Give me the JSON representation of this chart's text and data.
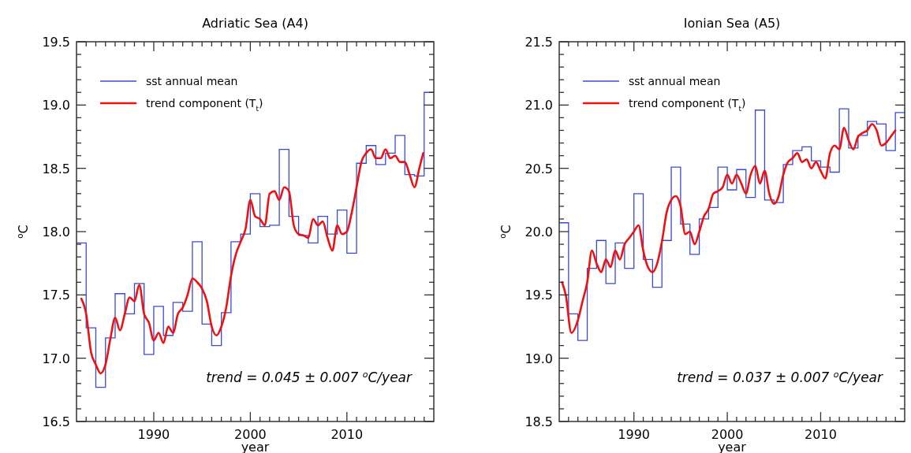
{
  "chart_data": [
    {
      "type": "step",
      "title": "Adriatic Sea (A4)",
      "xlabel": "year",
      "ylabel": "$^{o}$C",
      "legend": "top left",
      "grid": false,
      "line_style": "solid",
      "marker": "none",
      "xlim": [
        1982,
        2019
      ],
      "ylim": [
        16.5,
        19.5
      ],
      "xticks": [
        {
          "value": 1983,
          "label": null
        },
        {
          "value": 1984,
          "label": null
        },
        {
          "value": 1985,
          "label": null
        },
        {
          "value": 1986,
          "label": null
        },
        {
          "value": 1987,
          "label": null
        },
        {
          "value": 1988,
          "label": null
        },
        {
          "value": 1989,
          "label": null
        },
        1990,
        {
          "value": 1991,
          "label": null
        },
        {
          "value": 1992,
          "label": null
        },
        {
          "value": 1993,
          "label": null
        },
        {
          "value": 1994,
          "label": null
        },
        {
          "value": 1995,
          "label": null
        },
        {
          "value": 1996,
          "label": null
        },
        {
          "value": 1997,
          "label": null
        },
        {
          "value": 1998,
          "label": null
        },
        {
          "value": 1999,
          "label": null
        },
        2000,
        {
          "value": 2001,
          "label": null
        },
        {
          "value": 2002,
          "label": null
        },
        {
          "value": 2003,
          "label": null
        },
        {
          "value": 2004,
          "label": null
        },
        {
          "value": 2005,
          "label": null
        },
        {
          "value": 2006,
          "label": null
        },
        {
          "value": 2007,
          "label": null
        },
        {
          "value": 2008,
          "label": null
        },
        {
          "value": 2009,
          "label": null
        },
        2010,
        {
          "value": 2011,
          "label": null
        },
        {
          "value": 2012,
          "label": null
        },
        {
          "value": 2013,
          "label": null
        },
        {
          "value": 2014,
          "label": null
        },
        {
          "value": 2015,
          "label": null
        },
        {
          "value": 2016,
          "label": null
        },
        {
          "value": 2017,
          "label": null
        },
        {
          "value": 2018,
          "label": null
        }
      ],
      "yticks": [
        {
          "value": 16.5,
          "label": "16.5"
        },
        {
          "value": 16.6,
          "label": null
        },
        {
          "value": 16.7,
          "label": null
        },
        {
          "value": 16.8,
          "label": null
        },
        {
          "value": 16.9,
          "label": null
        },
        {
          "value": 17,
          "label": "17.0"
        },
        {
          "value": 17.1,
          "label": null
        },
        {
          "value": 17.2,
          "label": null
        },
        {
          "value": 17.3,
          "label": null
        },
        {
          "value": 17.4,
          "label": null
        },
        {
          "value": 17.5,
          "label": "17.5"
        },
        {
          "value": 17.6,
          "label": null
        },
        {
          "value": 17.7,
          "label": null
        },
        {
          "value": 17.8,
          "label": null
        },
        {
          "value": 17.9,
          "label": null
        },
        {
          "value": 18,
          "label": "18.0"
        },
        {
          "value": 18.1,
          "label": null
        },
        {
          "value": 18.2,
          "label": null
        },
        {
          "value": 18.3,
          "label": null
        },
        {
          "value": 18.4,
          "label": null
        },
        {
          "value": 18.5,
          "label": "18.5"
        },
        {
          "value": 18.6,
          "label": null
        },
        {
          "value": 18.7,
          "label": null
        },
        {
          "value": 18.8,
          "label": null
        },
        {
          "value": 18.9,
          "label": null
        },
        {
          "value": 19,
          "label": "19.0"
        },
        {
          "value": 19.1,
          "label": null
        },
        {
          "value": 19.2,
          "label": null
        },
        {
          "value": 19.3,
          "label": null
        },
        {
          "value": 19.4,
          "label": null
        },
        {
          "value": 19.5,
          "label": "19.5"
        }
      ],
      "annotations": [
        "trend = 0.045 ± 0.007 $^{o}$C/year"
      ],
      "series": [
        {
          "name": "sst annual mean",
          "color": "#3b4bd0",
          "x": [
            1982,
            1983,
            1984,
            1985,
            1986,
            1987,
            1988,
            1989,
            1990,
            1991,
            1992,
            1993,
            1994,
            1995,
            1996,
            1997,
            1998,
            1999,
            2000,
            2001,
            2002,
            2003,
            2004,
            2005,
            2006,
            2007,
            2008,
            2009,
            2010,
            2011,
            2012,
            2013,
            2014,
            2015,
            2016,
            2017,
            2018,
            2019
          ],
          "values": [
            17.91,
            17.24,
            16.77,
            17.16,
            17.51,
            17.35,
            17.59,
            17.03,
            17.41,
            17.18,
            17.44,
            17.37,
            17.92,
            17.27,
            17.1,
            17.36,
            17.92,
            17.98,
            18.3,
            18.04,
            18.05,
            18.65,
            18.12,
            17.97,
            17.91,
            18.12,
            17.98,
            18.17,
            17.83,
            18.54,
            18.68,
            18.53,
            18.62,
            18.76,
            18.45,
            18.44,
            19.1,
            19.1
          ]
        },
        {
          "name": "trend component (T$_{t}$)",
          "type": "line",
          "color": "#ee1111",
          "x": [
            1982.5,
            1983,
            1983.5,
            1984,
            1984.5,
            1985,
            1985.5,
            1986,
            1986.5,
            1987,
            1987.5,
            1988,
            1988.5,
            1989,
            1989.5,
            1990,
            1990.5,
            1991,
            1991.5,
            1992,
            1992.5,
            1993,
            1993.5,
            1994,
            1994.5,
            1995,
            1995.5,
            1996,
            1996.5,
            1997,
            1997.5,
            1998,
            1998.5,
            1999,
            1999.5,
            2000,
            2000.5,
            2001,
            2001.5,
            2002,
            2002.5,
            2003,
            2003.5,
            2004,
            2004.5,
            2005,
            2005.5,
            2006,
            2006.5,
            2007,
            2007.5,
            2008,
            2008.5,
            2009,
            2009.5,
            2010,
            2010.5,
            2011,
            2011.5,
            2012,
            2012.5,
            2013,
            2013.5,
            2014,
            2014.5,
            2015,
            2015.5,
            2016,
            2016.5,
            2017,
            2017.5,
            2017.9
          ],
          "values": [
            17.47,
            17.35,
            17.05,
            16.95,
            16.88,
            16.95,
            17.15,
            17.32,
            17.22,
            17.35,
            17.48,
            17.45,
            17.58,
            17.35,
            17.28,
            17.14,
            17.2,
            17.12,
            17.25,
            17.2,
            17.35,
            17.4,
            17.5,
            17.63,
            17.6,
            17.55,
            17.45,
            17.25,
            17.18,
            17.25,
            17.4,
            17.65,
            17.82,
            17.92,
            18.02,
            18.25,
            18.12,
            18.1,
            18.05,
            18.3,
            18.32,
            18.25,
            18.35,
            18.32,
            18.05,
            17.98,
            17.97,
            17.95,
            18.1,
            18.05,
            18.08,
            17.95,
            17.85,
            18.05,
            17.98,
            18.0,
            18.15,
            18.35,
            18.55,
            18.62,
            18.65,
            18.58,
            18.58,
            18.65,
            18.58,
            18.6,
            18.55,
            18.55,
            18.45,
            18.35,
            18.5,
            18.62
          ]
        }
      ]
    },
    {
      "type": "step",
      "title": "Ionian Sea (A5)",
      "xlabel": "year",
      "ylabel": "$^{o}$C",
      "legend": "top left",
      "grid": false,
      "line_style": "solid",
      "marker": "none",
      "xlim": [
        1982,
        2019
      ],
      "ylim": [
        18.5,
        21.5
      ],
      "xticks": [
        {
          "value": 1983,
          "label": null
        },
        {
          "value": 1984,
          "label": null
        },
        {
          "value": 1985,
          "label": null
        },
        {
          "value": 1986,
          "label": null
        },
        {
          "value": 1987,
          "label": null
        },
        {
          "value": 1988,
          "label": null
        },
        {
          "value": 1989,
          "label": null
        },
        1990,
        {
          "value": 1991,
          "label": null
        },
        {
          "value": 1992,
          "label": null
        },
        {
          "value": 1993,
          "label": null
        },
        {
          "value": 1994,
          "label": null
        },
        {
          "value": 1995,
          "label": null
        },
        {
          "value": 1996,
          "label": null
        },
        {
          "value": 1997,
          "label": null
        },
        {
          "value": 1998,
          "label": null
        },
        {
          "value": 1999,
          "label": null
        },
        2000,
        {
          "value": 2001,
          "label": null
        },
        {
          "value": 2002,
          "label": null
        },
        {
          "value": 2003,
          "label": null
        },
        {
          "value": 2004,
          "label": null
        },
        {
          "value": 2005,
          "label": null
        },
        {
          "value": 2006,
          "label": null
        },
        {
          "value": 2007,
          "label": null
        },
        {
          "value": 2008,
          "label": null
        },
        {
          "value": 2009,
          "label": null
        },
        2010,
        {
          "value": 2011,
          "label": null
        },
        {
          "value": 2012,
          "label": null
        },
        {
          "value": 2013,
          "label": null
        },
        {
          "value": 2014,
          "label": null
        },
        {
          "value": 2015,
          "label": null
        },
        {
          "value": 2016,
          "label": null
        },
        {
          "value": 2017,
          "label": null
        },
        {
          "value": 2018,
          "label": null
        }
      ],
      "yticks": [
        {
          "value": 18.5,
          "label": "18.5"
        },
        {
          "value": 18.6,
          "label": null
        },
        {
          "value": 18.7,
          "label": null
        },
        {
          "value": 18.8,
          "label": null
        },
        {
          "value": 18.9,
          "label": null
        },
        {
          "value": 19,
          "label": "19.0"
        },
        {
          "value": 19.1,
          "label": null
        },
        {
          "value": 19.2,
          "label": null
        },
        {
          "value": 19.3,
          "label": null
        },
        {
          "value": 19.4,
          "label": null
        },
        {
          "value": 19.5,
          "label": "19.5"
        },
        {
          "value": 19.6,
          "label": null
        },
        {
          "value": 19.7,
          "label": null
        },
        {
          "value": 19.8,
          "label": null
        },
        {
          "value": 19.9,
          "label": null
        },
        {
          "value": 20,
          "label": "20.0"
        },
        {
          "value": 20.1,
          "label": null
        },
        {
          "value": 20.2,
          "label": null
        },
        {
          "value": 20.3,
          "label": null
        },
        {
          "value": 20.4,
          "label": null
        },
        {
          "value": 20.5,
          "label": "20.5"
        },
        {
          "value": 20.6,
          "label": null
        },
        {
          "value": 20.7,
          "label": null
        },
        {
          "value": 20.8,
          "label": null
        },
        {
          "value": 20.9,
          "label": null
        },
        {
          "value": 21,
          "label": "21.0"
        },
        {
          "value": 21.1,
          "label": null
        },
        {
          "value": 21.2,
          "label": null
        },
        {
          "value": 21.3,
          "label": null
        },
        {
          "value": 21.4,
          "label": null
        },
        {
          "value": 21.5,
          "label": "21.5"
        }
      ],
      "annotations": [
        "trend = 0.037 ± 0.007 $^{o}$C/year"
      ],
      "series": [
        {
          "name": "sst annual mean",
          "color": "#3b4bd0",
          "x": [
            1982,
            1983,
            1984,
            1985,
            1986,
            1987,
            1988,
            1989,
            1990,
            1991,
            1992,
            1993,
            1994,
            1995,
            1996,
            1997,
            1998,
            1999,
            2000,
            2001,
            2002,
            2003,
            2004,
            2005,
            2006,
            2007,
            2008,
            2009,
            2010,
            2011,
            2012,
            2013,
            2014,
            2015,
            2016,
            2017,
            2018,
            2019
          ],
          "values": [
            20.07,
            19.35,
            19.14,
            19.71,
            19.93,
            19.59,
            19.91,
            19.71,
            20.3,
            19.78,
            19.56,
            19.93,
            20.51,
            20.06,
            19.82,
            20.1,
            20.19,
            20.51,
            20.33,
            20.49,
            20.27,
            20.96,
            20.25,
            20.23,
            20.53,
            20.64,
            20.67,
            20.56,
            20.51,
            20.47,
            20.97,
            20.66,
            20.76,
            20.87,
            20.85,
            20.64,
            20.94,
            20.94
          ]
        },
        {
          "name": "trend component (T$_{t}$)",
          "type": "line",
          "color": "#ee1111",
          "x": [
            1982.3,
            1982.7,
            1983.3,
            1984,
            1984.5,
            1985,
            1985.5,
            1986,
            1986.5,
            1987,
            1987.5,
            1988,
            1988.5,
            1989,
            1989.5,
            1990,
            1990.5,
            1991,
            1991.5,
            1992,
            1992.5,
            1993,
            1993.5,
            1994,
            1994.5,
            1995,
            1995.5,
            1996,
            1996.5,
            1997,
            1997.5,
            1998,
            1998.5,
            1999,
            1999.5,
            2000,
            2000.5,
            2001,
            2001.5,
            2002,
            2002.5,
            2003,
            2003.5,
            2004,
            2004.5,
            2005,
            2005.5,
            2006,
            2006.5,
            2007,
            2007.5,
            2008,
            2008.5,
            2009,
            2009.5,
            2010,
            2010.5,
            2011,
            2011.5,
            2012,
            2012.5,
            2013,
            2013.5,
            2014,
            2014.5,
            2015,
            2015.5,
            2016,
            2016.5,
            2017,
            2017.5,
            2018
          ],
          "values": [
            19.6,
            19.5,
            19.2,
            19.3,
            19.45,
            19.6,
            19.85,
            19.75,
            19.68,
            19.78,
            19.72,
            19.85,
            19.78,
            19.9,
            19.95,
            20.0,
            20.05,
            19.85,
            19.72,
            19.68,
            19.75,
            19.92,
            20.15,
            20.25,
            20.28,
            20.2,
            19.98,
            20.0,
            19.9,
            20.0,
            20.12,
            20.18,
            20.3,
            20.32,
            20.35,
            20.45,
            20.38,
            20.45,
            20.38,
            20.3,
            20.45,
            20.52,
            20.38,
            20.48,
            20.3,
            20.22,
            20.28,
            20.45,
            20.55,
            20.58,
            20.62,
            20.55,
            20.57,
            20.5,
            20.55,
            20.48,
            20.42,
            20.62,
            20.68,
            20.65,
            20.82,
            20.72,
            20.65,
            20.75,
            20.78,
            20.8,
            20.85,
            20.8,
            20.68,
            20.7,
            20.75,
            20.8
          ]
        }
      ]
    }
  ]
}
